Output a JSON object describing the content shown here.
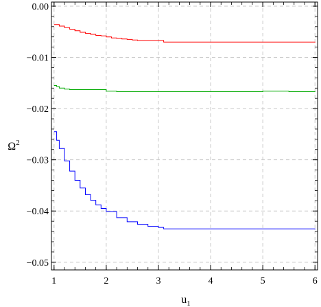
{
  "chart_data": {
    "type": "line",
    "title": "",
    "xlabel": {
      "base": "u",
      "sub": "1"
    },
    "ylabel": {
      "base": "Ω",
      "sup": "2"
    },
    "xlim": [
      0.95,
      6.05
    ],
    "ylim": [
      -0.0515,
      0.0008
    ],
    "xticks": [
      1,
      2,
      3,
      4,
      5,
      6
    ],
    "xtick_labels": [
      "1",
      "2",
      "3",
      "4",
      "5",
      "6"
    ],
    "yticks": [
      0.0,
      -0.01,
      -0.02,
      -0.03,
      -0.04,
      -0.05
    ],
    "ytick_labels": [
      "0.00",
      "−0.01",
      "−0.02",
      "−0.03",
      "−0.04",
      "−0.05"
    ],
    "grid": true,
    "legend": "none",
    "series": [
      {
        "color": "#ff0000",
        "x": [
          1.0,
          1.1,
          1.2,
          1.3,
          1.4,
          1.5,
          1.6,
          1.7,
          1.8,
          1.9,
          2.0,
          2.1,
          2.2,
          2.3,
          2.4,
          2.5,
          2.6,
          2.8,
          3.0,
          3.1,
          3.5,
          4.0,
          4.5,
          5.0,
          5.5,
          6.0
        ],
        "y": [
          -0.0036,
          -0.0039,
          -0.0042,
          -0.0045,
          -0.0048,
          -0.0051,
          -0.0053,
          -0.0055,
          -0.0057,
          -0.0058,
          -0.006,
          -0.0062,
          -0.0063,
          -0.0064,
          -0.0065,
          -0.0066,
          -0.0067,
          -0.0067,
          -0.0067,
          -0.007,
          -0.007,
          -0.007,
          -0.007,
          -0.007,
          -0.007,
          -0.0071
        ]
      },
      {
        "color": "#00aa00",
        "x": [
          1.0,
          1.05,
          1.1,
          1.2,
          1.3,
          1.5,
          1.7,
          1.9,
          2.0,
          2.2,
          2.5,
          3.0,
          3.5,
          4.0,
          4.5,
          5.0,
          5.5,
          6.0
        ],
        "y": [
          -0.0155,
          -0.0157,
          -0.016,
          -0.0162,
          -0.0163,
          -0.0163,
          -0.0163,
          -0.0163,
          -0.0166,
          -0.0167,
          -0.0167,
          -0.0167,
          -0.0167,
          -0.0167,
          -0.0167,
          -0.0166,
          -0.0167,
          -0.0166
        ]
      },
      {
        "color": "#0000ff",
        "x": [
          1.0,
          1.05,
          1.1,
          1.2,
          1.3,
          1.4,
          1.5,
          1.6,
          1.7,
          1.8,
          1.9,
          2.0,
          2.2,
          2.4,
          2.6,
          2.8,
          3.0,
          3.05,
          3.1,
          3.5,
          4.0,
          4.5,
          5.0,
          5.5,
          6.0
        ],
        "y": [
          -0.0245,
          -0.0262,
          -0.0278,
          -0.0302,
          -0.0322,
          -0.034,
          -0.0355,
          -0.0368,
          -0.0379,
          -0.0388,
          -0.0395,
          -0.0401,
          -0.0413,
          -0.0421,
          -0.0426,
          -0.043,
          -0.0432,
          -0.0432,
          -0.0435,
          -0.0435,
          -0.0435,
          -0.0435,
          -0.0435,
          -0.0435,
          -0.0436
        ]
      }
    ]
  }
}
